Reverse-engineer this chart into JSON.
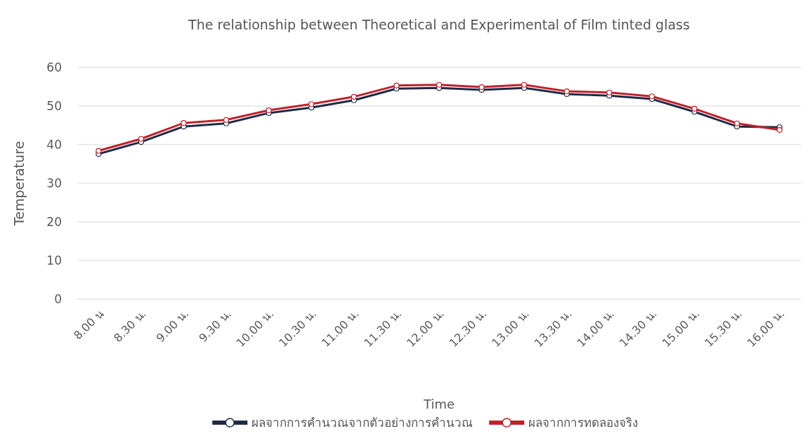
{
  "chart_data": {
    "type": "line",
    "title": "The relationship between Theoretical and Experimental of Film tinted glass",
    "xlabel": "Time",
    "ylabel": "Temperature",
    "categories": [
      "8.00 น",
      "8.30 น.",
      "9.00 น.",
      "9.30 น.",
      "10.00 น.",
      "10.30 น.",
      "11.00 น.",
      "11.30 น.",
      "12.00 น.",
      "12.30 น.",
      "13.00 น.",
      "13.30 น.",
      "14.00 น.",
      "14.30 น.",
      "15.00 น.",
      "15.30 น.",
      "16.00 น."
    ],
    "series": [
      {
        "name": "ผลจากการคำนวณจากตัวอย่างการคำนวณ",
        "color": "#1f2a44",
        "values": [
          37.6,
          40.7,
          44.7,
          45.5,
          48.2,
          49.6,
          51.5,
          54.5,
          54.7,
          54.2,
          54.7,
          53.1,
          52.7,
          51.8,
          48.5,
          44.7,
          44.5
        ]
      },
      {
        "name": "ผลจากการทดลองจริง",
        "color": "#c0212b",
        "values": [
          38.4,
          41.5,
          45.6,
          46.4,
          48.9,
          50.5,
          52.4,
          55.3,
          55.5,
          54.9,
          55.5,
          53.8,
          53.5,
          52.5,
          49.3,
          45.5,
          43.8
        ]
      }
    ],
    "ylim": [
      0,
      60
    ],
    "yticks": [
      0,
      10,
      20,
      30,
      40,
      50,
      60
    ],
    "grid": "y",
    "legend": "bottom",
    "marker": "circle",
    "line_style": "solid"
  }
}
